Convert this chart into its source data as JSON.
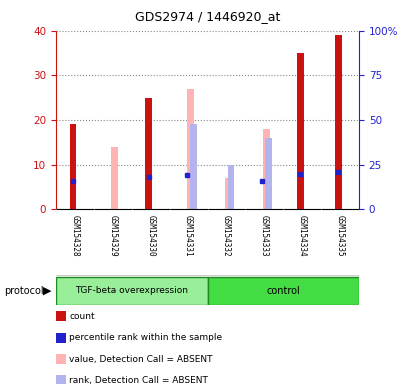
{
  "title": "GDS2974 / 1446920_at",
  "samples": [
    "GSM154328",
    "GSM154329",
    "GSM154330",
    "GSM154331",
    "GSM154332",
    "GSM154333",
    "GSM154334",
    "GSM154335"
  ],
  "count_values": [
    19,
    0,
    25,
    0,
    0,
    0,
    35,
    39
  ],
  "percentile_values": [
    16,
    0,
    18,
    19,
    0,
    16,
    20,
    21
  ],
  "pink_bar_values": [
    0,
    14,
    0,
    27,
    7,
    18,
    0,
    0
  ],
  "lavender_bar_values": [
    0,
    0,
    0,
    19,
    10,
    16,
    0,
    0
  ],
  "count_color": "#cc1111",
  "percentile_color": "#2222cc",
  "pink_color": "#ffb3b3",
  "lavender_color": "#b3b3ee",
  "ylim_left": [
    0,
    40
  ],
  "ylim_right": [
    0,
    100
  ],
  "yticks_left": [
    0,
    10,
    20,
    30,
    40
  ],
  "yticks_right": [
    0,
    25,
    50,
    75,
    100
  ],
  "ytick_labels_right": [
    "0",
    "25",
    "50",
    "75",
    "100%"
  ],
  "group1_label": "TGF-beta overexpression",
  "group2_label": "control",
  "group1_color": "#99ee99",
  "group2_color": "#44dd44",
  "group1_edge": "#228822",
  "group2_edge": "#228822",
  "protocol_label": "protocol",
  "red_bar_width": 0.18,
  "pink_bar_width": 0.18,
  "lav_bar_width": 0.18,
  "bg_color": "#cccccc",
  "plot_bg_color": "#ffffff",
  "legend_items": [
    {
      "label": "count",
      "color": "#cc1111"
    },
    {
      "label": "percentile rank within the sample",
      "color": "#2222cc"
    },
    {
      "label": "value, Detection Call = ABSENT",
      "color": "#ffb3b3"
    },
    {
      "label": "rank, Detection Call = ABSENT",
      "color": "#b3b3ee"
    }
  ]
}
